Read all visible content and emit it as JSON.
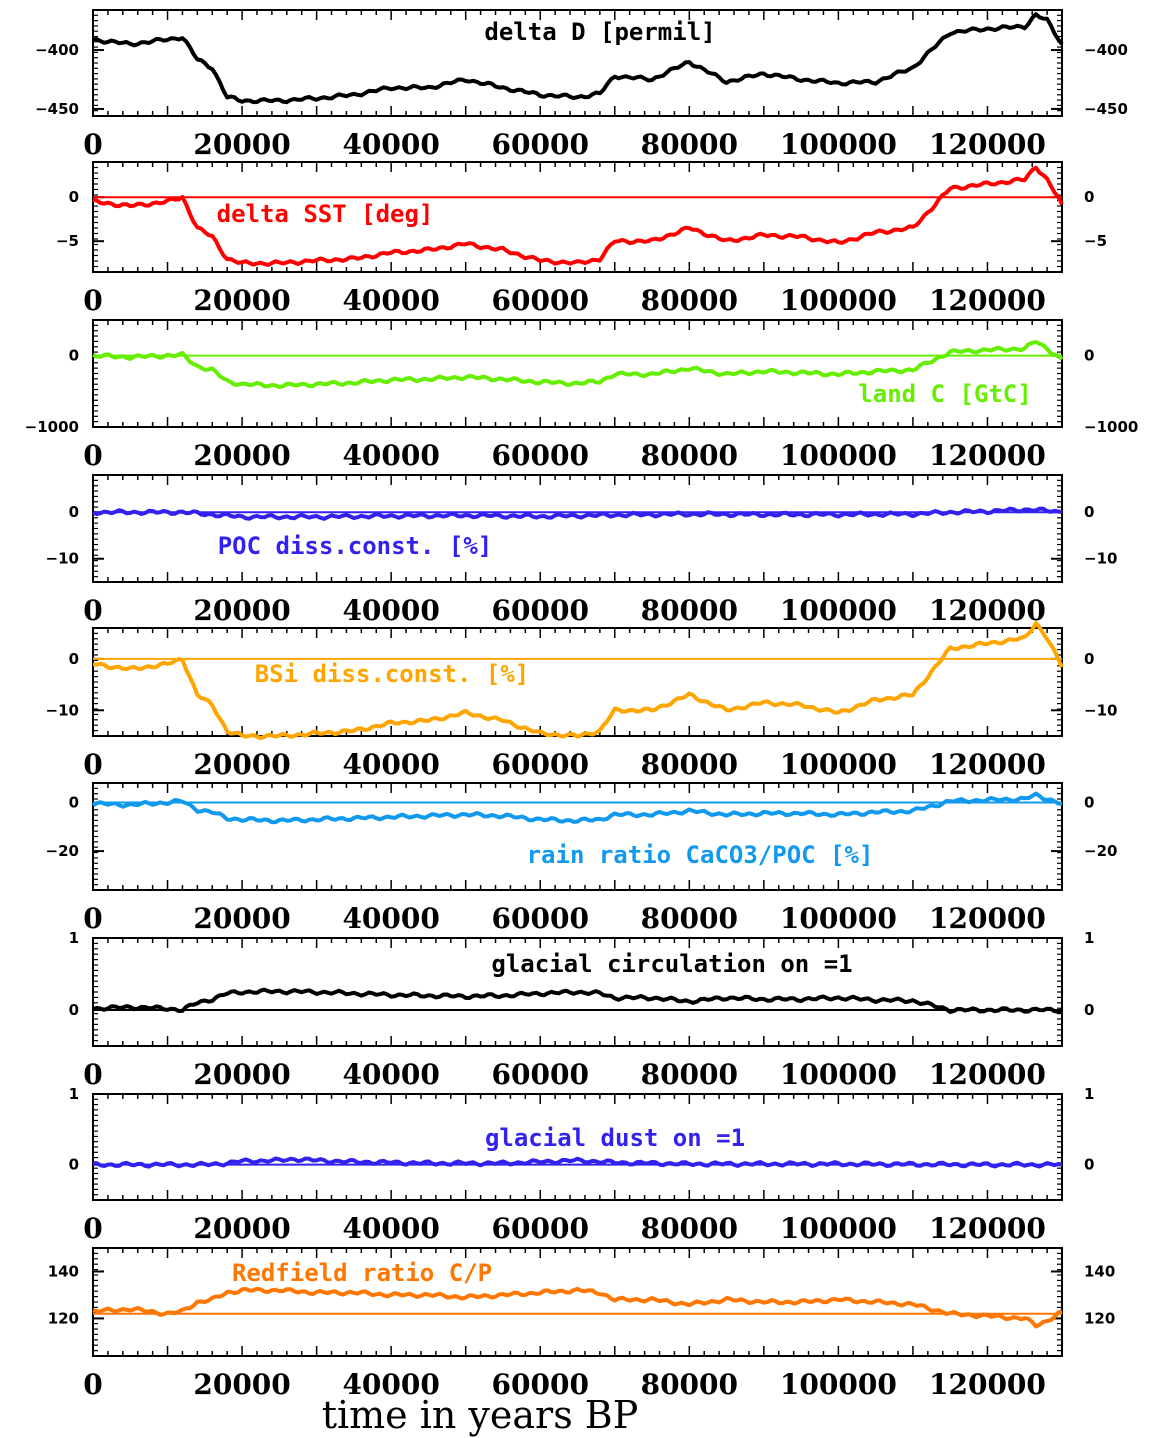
{
  "xlabel": "time in years BP",
  "chart_data": [
    {
      "type": "line",
      "title": "delta D [permil]",
      "color": "#000000",
      "ylim": [
        -456,
        -366
      ],
      "yticks": [
        -400,
        -450
      ],
      "zero": null,
      "series": [
        {
          "x": [
            0,
            5000,
            10000,
            12000,
            14000,
            16000,
            18000,
            20000,
            25000,
            30000,
            35000,
            40000,
            45000,
            50000,
            55000,
            60000,
            65000,
            68000,
            70000,
            75000,
            80000,
            85000,
            90000,
            95000,
            100000,
            105000,
            110000,
            115000,
            120000,
            125000,
            126500,
            128000,
            130000
          ],
          "values": [
            -391,
            -395,
            -391,
            -389,
            -408,
            -415,
            -440,
            -443,
            -443,
            -441,
            -438,
            -432,
            -432,
            -425,
            -432,
            -438,
            -440,
            -437,
            -422,
            -425,
            -410,
            -427,
            -420,
            -425,
            -428,
            -427,
            -415,
            -385,
            -382,
            -380,
            -370,
            -375,
            -395
          ]
        }
      ]
    },
    {
      "type": "line",
      "title": "delta SST [deg]",
      "color": "#ff0000",
      "ylim": [
        -8.5,
        4.0
      ],
      "yticks": [
        0,
        -5
      ],
      "zero": 0,
      "series": [
        {
          "x": [
            0,
            5000,
            10000,
            12000,
            14000,
            16000,
            18000,
            20000,
            25000,
            30000,
            35000,
            40000,
            45000,
            50000,
            55000,
            60000,
            65000,
            68000,
            70000,
            75000,
            80000,
            85000,
            90000,
            95000,
            100000,
            105000,
            110000,
            115000,
            120000,
            125000,
            126500,
            128000,
            130000
          ],
          "values": [
            -0.5,
            -1,
            -0.5,
            0,
            -3.5,
            -4.5,
            -7,
            -7.5,
            -7.5,
            -7.2,
            -7,
            -6.3,
            -6,
            -5.3,
            -6,
            -7.2,
            -7.5,
            -7,
            -5,
            -5,
            -3.5,
            -5,
            -4.3,
            -4.5,
            -5.2,
            -4,
            -3.5,
            1,
            1.5,
            2,
            3.5,
            2,
            -0.8
          ]
        }
      ]
    },
    {
      "type": "line",
      "title": "land C [GtC]",
      "color": "#66ee00",
      "ylim": [
        -1000,
        500
      ],
      "yticks": [
        0,
        -1000
      ],
      "zero": 0,
      "series": [
        {
          "x": [
            0,
            5000,
            10000,
            12000,
            14000,
            16000,
            18000,
            20000,
            25000,
            30000,
            35000,
            40000,
            45000,
            50000,
            55000,
            60000,
            65000,
            68000,
            70000,
            75000,
            80000,
            85000,
            90000,
            95000,
            100000,
            105000,
            110000,
            115000,
            120000,
            125000,
            126500,
            128000,
            130000
          ],
          "values": [
            0,
            -20,
            0,
            10,
            -150,
            -200,
            -360,
            -400,
            -420,
            -400,
            -380,
            -340,
            -330,
            -300,
            -330,
            -370,
            -390,
            -360,
            -260,
            -260,
            -180,
            -260,
            -220,
            -240,
            -260,
            -220,
            -200,
            50,
            80,
            100,
            200,
            100,
            -50
          ]
        }
      ]
    },
    {
      "type": "line",
      "title": "POC diss.const. [%]",
      "color": "#3322ee",
      "ylim": [
        -15,
        8
      ],
      "yticks": [
        0,
        -10
      ],
      "zero": 0,
      "series": [
        {
          "x": [
            0,
            10000,
            12000,
            16000,
            20000,
            30000,
            40000,
            50000,
            60000,
            70000,
            80000,
            90000,
            100000,
            110000,
            115000,
            120000,
            126000,
            130000
          ],
          "values": [
            0,
            0,
            0,
            -0.5,
            -1.0,
            -1.0,
            -0.8,
            -0.7,
            -0.9,
            -0.6,
            -0.4,
            -0.5,
            -0.5,
            -0.4,
            0,
            0.2,
            0.6,
            0
          ]
        }
      ]
    },
    {
      "type": "line",
      "title": "BSi diss.const. [%]",
      "color": "#ffa500",
      "ylim": [
        -15,
        6
      ],
      "yticks": [
        0,
        -10
      ],
      "zero": 0,
      "series": [
        {
          "x": [
            0,
            5000,
            10000,
            12000,
            14000,
            16000,
            18000,
            20000,
            25000,
            30000,
            35000,
            40000,
            45000,
            50000,
            55000,
            60000,
            65000,
            68000,
            70000,
            75000,
            80000,
            85000,
            90000,
            95000,
            100000,
            105000,
            110000,
            115000,
            120000,
            125000,
            126500,
            128000,
            130000
          ],
          "values": [
            -1,
            -2,
            -1,
            0,
            -7,
            -9,
            -14,
            -15,
            -15,
            -14.5,
            -14,
            -12.5,
            -12,
            -10.5,
            -12,
            -14.5,
            -15,
            -14,
            -10,
            -10,
            -7,
            -10,
            -8.5,
            -9,
            -10.5,
            -8,
            -7,
            2,
            3,
            4,
            7,
            4,
            -1.6
          ]
        }
      ]
    },
    {
      "type": "line",
      "title": "rain ratio CaCO3/POC [%]",
      "color": "#1199ee",
      "ylim": [
        -36,
        8
      ],
      "yticks": [
        0,
        -20
      ],
      "zero": 0,
      "series": [
        {
          "x": [
            0,
            5000,
            10000,
            12000,
            14000,
            16000,
            18000,
            20000,
            25000,
            30000,
            35000,
            40000,
            45000,
            50000,
            55000,
            60000,
            65000,
            68000,
            70000,
            75000,
            80000,
            85000,
            90000,
            95000,
            100000,
            105000,
            110000,
            115000,
            120000,
            125000,
            126500,
            128000,
            130000
          ],
          "values": [
            -0.5,
            -1,
            0,
            0.5,
            -3,
            -4,
            -6.5,
            -7,
            -7.5,
            -7,
            -6.5,
            -6,
            -5.5,
            -5,
            -5.5,
            -7,
            -7.5,
            -7,
            -5,
            -5,
            -3.5,
            -5,
            -4.5,
            -4.5,
            -5,
            -4,
            -3.5,
            0.5,
            1,
            1.5,
            3,
            1.5,
            -0.5
          ]
        }
      ]
    },
    {
      "type": "line",
      "title": "glacial circulation on =1",
      "color": "#000000",
      "ylim": [
        -0.5,
        1
      ],
      "yticks": [
        1,
        0
      ],
      "zero": 0,
      "series": [
        {
          "x": [
            0,
            5000,
            10000,
            12000,
            14000,
            16000,
            18000,
            20000,
            25000,
            30000,
            35000,
            40000,
            45000,
            50000,
            55000,
            60000,
            65000,
            68000,
            70000,
            75000,
            80000,
            85000,
            90000,
            95000,
            100000,
            105000,
            110000,
            115000,
            120000,
            125000,
            130000
          ],
          "values": [
            0.02,
            0.04,
            0.02,
            0.0,
            0.1,
            0.15,
            0.23,
            0.25,
            0.26,
            0.25,
            0.23,
            0.21,
            0.2,
            0.19,
            0.2,
            0.23,
            0.25,
            0.23,
            0.17,
            0.17,
            0.12,
            0.17,
            0.15,
            0.15,
            0.17,
            0.14,
            0.13,
            0.0,
            0.0,
            0.0,
            0.0
          ]
        }
      ]
    },
    {
      "type": "line",
      "title": "glacial dust on =1",
      "color": "#3322ee",
      "ylim": [
        -0.5,
        1
      ],
      "yticks": [
        1,
        0
      ],
      "zero": 0,
      "series": [
        {
          "x": [
            0,
            10000,
            15000,
            18000,
            20000,
            25000,
            27000,
            30000,
            35000,
            40000,
            45000,
            50000,
            55000,
            60000,
            65000,
            70000,
            75000,
            80000,
            90000,
            100000,
            110000,
            120000,
            130000
          ],
          "values": [
            0,
            0,
            0,
            0.02,
            0.05,
            0.06,
            0.08,
            0.06,
            0.04,
            0.03,
            0.02,
            0.02,
            0.02,
            0.04,
            0.06,
            0.03,
            0.02,
            0.01,
            0.01,
            0.01,
            0.005,
            0,
            0
          ]
        }
      ]
    },
    {
      "type": "line",
      "title": "Redfield ratio C/P",
      "color": "#ff7700",
      "ylim": [
        104,
        150
      ],
      "yticks": [
        140,
        120
      ],
      "zero": 122,
      "series": [
        {
          "x": [
            0,
            5000,
            10000,
            12000,
            14000,
            16000,
            18000,
            20000,
            25000,
            30000,
            35000,
            40000,
            45000,
            50000,
            55000,
            60000,
            65000,
            68000,
            70000,
            75000,
            80000,
            85000,
            90000,
            95000,
            100000,
            105000,
            110000,
            115000,
            120000,
            125000,
            126500,
            128000,
            130000
          ],
          "values": [
            123,
            124,
            122,
            123,
            127,
            128,
            131,
            132,
            132,
            131,
            131,
            130,
            130,
            129,
            130,
            131,
            132,
            131,
            128,
            128,
            126,
            128,
            127,
            127,
            128,
            127,
            126,
            122,
            121,
            120,
            117,
            119,
            123
          ]
        }
      ]
    }
  ],
  "xticks": [
    "0",
    "20000",
    "40000",
    "60000",
    "80000",
    "100000",
    "120000"
  ],
  "xmax": 130000
}
